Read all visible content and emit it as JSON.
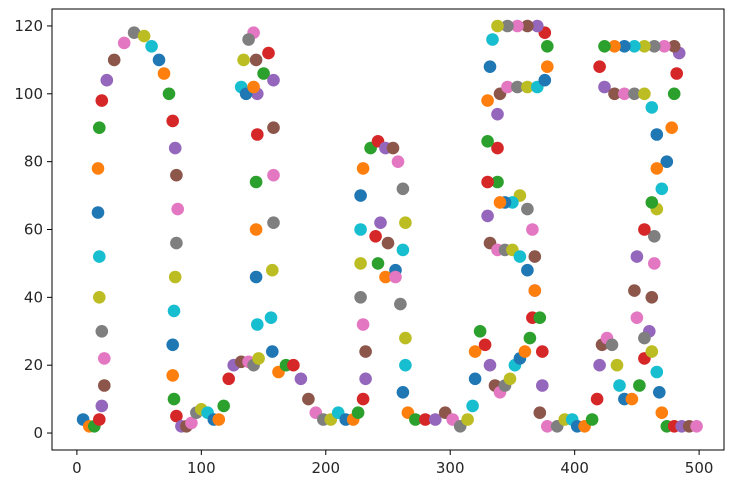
{
  "chart_data": {
    "type": "scatter",
    "title": "",
    "xlabel": "",
    "ylabel": "",
    "xlim": [
      -20,
      520
    ],
    "ylim": [
      -5,
      125
    ],
    "xticks": [
      0,
      100,
      200,
      300,
      400,
      500
    ],
    "yticks": [
      0,
      20,
      40,
      60,
      80,
      100,
      120
    ],
    "grid": false,
    "legend": "none",
    "colors": [
      "#1f77b4",
      "#ff7f0e",
      "#2ca02c",
      "#d62728",
      "#9467bd",
      "#8c564b",
      "#e377c2",
      "#7f7f7f",
      "#bcbd22",
      "#17becf"
    ],
    "points": [
      [
        5,
        4
      ],
      [
        10,
        2
      ],
      [
        14,
        2
      ],
      [
        18,
        4
      ],
      [
        20,
        8
      ],
      [
        22,
        14
      ],
      [
        22,
        22
      ],
      [
        20,
        30
      ],
      [
        18,
        40
      ],
      [
        18,
        52
      ],
      [
        17,
        65
      ],
      [
        17,
        78
      ],
      [
        18,
        90
      ],
      [
        20,
        98
      ],
      [
        24,
        104
      ],
      [
        30,
        110
      ],
      [
        38,
        115
      ],
      [
        46,
        118
      ],
      [
        54,
        117
      ],
      [
        60,
        114
      ],
      [
        66,
        110
      ],
      [
        70,
        106
      ],
      [
        74,
        100
      ],
      [
        77,
        92
      ],
      [
        79,
        84
      ],
      [
        80,
        76
      ],
      [
        81,
        66
      ],
      [
        80,
        56
      ],
      [
        79,
        46
      ],
      [
        78,
        36
      ],
      [
        77,
        26
      ],
      [
        77,
        17
      ],
      [
        78,
        10
      ],
      [
        80,
        5
      ],
      [
        84,
        2
      ],
      [
        88,
        2
      ],
      [
        92,
        3
      ],
      [
        96,
        6
      ],
      [
        100,
        7
      ],
      [
        105,
        6
      ],
      [
        110,
        4
      ],
      [
        114,
        4
      ],
      [
        118,
        8
      ],
      [
        122,
        16
      ],
      [
        126,
        20
      ],
      [
        132,
        21
      ],
      [
        138,
        21
      ],
      [
        142,
        20
      ],
      [
        146,
        22
      ],
      [
        145,
        32
      ],
      [
        144,
        46
      ],
      [
        144,
        60
      ],
      [
        144,
        74
      ],
      [
        145,
        88
      ],
      [
        145,
        100
      ],
      [
        144,
        110
      ],
      [
        142,
        118
      ],
      [
        138,
        116
      ],
      [
        134,
        110
      ],
      [
        132,
        102
      ],
      [
        136,
        100
      ],
      [
        142,
        102
      ],
      [
        150,
        106
      ],
      [
        154,
        112
      ],
      [
        158,
        104
      ],
      [
        158,
        90
      ],
      [
        158,
        76
      ],
      [
        158,
        62
      ],
      [
        157,
        48
      ],
      [
        156,
        34
      ],
      [
        157,
        24
      ],
      [
        162,
        18
      ],
      [
        168,
        20
      ],
      [
        174,
        20
      ],
      [
        180,
        16
      ],
      [
        186,
        10
      ],
      [
        192,
        6
      ],
      [
        198,
        4
      ],
      [
        204,
        4
      ],
      [
        210,
        6
      ],
      [
        216,
        4
      ],
      [
        222,
        4
      ],
      [
        226,
        6
      ],
      [
        230,
        10
      ],
      [
        232,
        16
      ],
      [
        232,
        24
      ],
      [
        230,
        32
      ],
      [
        228,
        40
      ],
      [
        228,
        50
      ],
      [
        228,
        60
      ],
      [
        228,
        70
      ],
      [
        230,
        78
      ],
      [
        236,
        84
      ],
      [
        242,
        86
      ],
      [
        248,
        84
      ],
      [
        254,
        84
      ],
      [
        258,
        80
      ],
      [
        262,
        72
      ],
      [
        264,
        62
      ],
      [
        262,
        54
      ],
      [
        256,
        48
      ],
      [
        248,
        46
      ],
      [
        242,
        50
      ],
      [
        240,
        58
      ],
      [
        244,
        62
      ],
      [
        250,
        56
      ],
      [
        256,
        46
      ],
      [
        260,
        38
      ],
      [
        264,
        28
      ],
      [
        264,
        20
      ],
      [
        262,
        12
      ],
      [
        266,
        6
      ],
      [
        272,
        4
      ],
      [
        280,
        4
      ],
      [
        288,
        4
      ],
      [
        296,
        6
      ],
      [
        302,
        4
      ],
      [
        308,
        2
      ],
      [
        314,
        4
      ],
      [
        318,
        8
      ],
      [
        320,
        16
      ],
      [
        320,
        24
      ],
      [
        324,
        30
      ],
      [
        328,
        26
      ],
      [
        332,
        20
      ],
      [
        336,
        14
      ],
      [
        340,
        12
      ],
      [
        344,
        14
      ],
      [
        348,
        16
      ],
      [
        352,
        20
      ],
      [
        356,
        22
      ],
      [
        360,
        24
      ],
      [
        364,
        28
      ],
      [
        366,
        34
      ],
      [
        368,
        42
      ],
      [
        368,
        52
      ],
      [
        366,
        60
      ],
      [
        362,
        66
      ],
      [
        356,
        70
      ],
      [
        350,
        68
      ],
      [
        344,
        68
      ],
      [
        340,
        68
      ],
      [
        338,
        74
      ],
      [
        338,
        84
      ],
      [
        338,
        94
      ],
      [
        340,
        100
      ],
      [
        346,
        102
      ],
      [
        354,
        102
      ],
      [
        362,
        102
      ],
      [
        370,
        102
      ],
      [
        376,
        104
      ],
      [
        378,
        108
      ],
      [
        378,
        114
      ],
      [
        376,
        118
      ],
      [
        370,
        120
      ],
      [
        362,
        120
      ],
      [
        354,
        120
      ],
      [
        346,
        120
      ],
      [
        338,
        120
      ],
      [
        334,
        116
      ],
      [
        332,
        108
      ],
      [
        330,
        98
      ],
      [
        330,
        86
      ],
      [
        330,
        74
      ],
      [
        330,
        64
      ],
      [
        332,
        56
      ],
      [
        338,
        54
      ],
      [
        344,
        54
      ],
      [
        350,
        54
      ],
      [
        356,
        52
      ],
      [
        362,
        48
      ],
      [
        368,
        42
      ],
      [
        372,
        34
      ],
      [
        374,
        24
      ],
      [
        374,
        14
      ],
      [
        372,
        6
      ],
      [
        378,
        2
      ],
      [
        386,
        2
      ],
      [
        392,
        4
      ],
      [
        398,
        4
      ],
      [
        402,
        2
      ],
      [
        408,
        2
      ],
      [
        414,
        4
      ],
      [
        418,
        10
      ],
      [
        420,
        20
      ],
      [
        422,
        26
      ],
      [
        426,
        28
      ],
      [
        430,
        26
      ],
      [
        434,
        20
      ],
      [
        436,
        14
      ],
      [
        440,
        10
      ],
      [
        446,
        10
      ],
      [
        452,
        14
      ],
      [
        456,
        22
      ],
      [
        460,
        30
      ],
      [
        462,
        40
      ],
      [
        464,
        50
      ],
      [
        464,
        58
      ],
      [
        466,
        66
      ],
      [
        470,
        72
      ],
      [
        474,
        80
      ],
      [
        478,
        90
      ],
      [
        480,
        100
      ],
      [
        482,
        106
      ],
      [
        484,
        112
      ],
      [
        480,
        114
      ],
      [
        472,
        114
      ],
      [
        464,
        114
      ],
      [
        456,
        114
      ],
      [
        448,
        114
      ],
      [
        440,
        114
      ],
      [
        432,
        114
      ],
      [
        424,
        114
      ],
      [
        420,
        108
      ],
      [
        424,
        102
      ],
      [
        432,
        100
      ],
      [
        440,
        100
      ],
      [
        448,
        100
      ],
      [
        456,
        100
      ],
      [
        462,
        96
      ],
      [
        466,
        88
      ],
      [
        466,
        78
      ],
      [
        462,
        68
      ],
      [
        456,
        60
      ],
      [
        450,
        52
      ],
      [
        448,
        42
      ],
      [
        450,
        34
      ],
      [
        456,
        28
      ],
      [
        462,
        24
      ],
      [
        466,
        18
      ],
      [
        468,
        12
      ],
      [
        470,
        6
      ],
      [
        474,
        2
      ],
      [
        480,
        2
      ],
      [
        486,
        2
      ],
      [
        492,
        2
      ],
      [
        498,
        2
      ]
    ]
  }
}
